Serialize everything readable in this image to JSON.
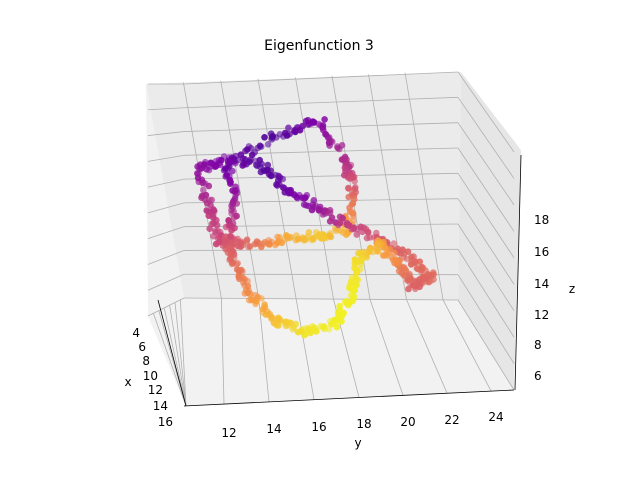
{
  "chart_data": {
    "type": "scatter",
    "projection": "3d",
    "title": "Eigenfunction 3",
    "xlabel": "x",
    "ylabel": "y",
    "zlabel": "z",
    "x_ticks": [
      4,
      6,
      8,
      10,
      12,
      14,
      16
    ],
    "y_ticks": [
      12,
      14,
      16,
      18,
      20,
      22,
      24
    ],
    "z_ticks": [
      6,
      8,
      12,
      14,
      16,
      18
    ],
    "xlim": [
      3,
      16
    ],
    "ylim": [
      11,
      25
    ],
    "zlim": [
      5,
      19
    ],
    "colormap": "plasma",
    "grid": true,
    "points_approx": [
      {
        "x": 8,
        "y": 12,
        "z": 16,
        "c": 0.35
      },
      {
        "x": 6,
        "y": 15,
        "z": 18,
        "c": 0.1
      },
      {
        "x": 8,
        "y": 19,
        "z": 18,
        "c": 0.3
      },
      {
        "x": 10,
        "y": 19,
        "z": 14,
        "c": 0.55
      },
      {
        "x": 10,
        "y": 24,
        "z": 12,
        "c": 0.75
      },
      {
        "x": 12,
        "y": 21,
        "z": 10,
        "c": 0.95
      },
      {
        "x": 14,
        "y": 16,
        "z": 8,
        "c": 0.85
      },
      {
        "x": 13,
        "y": 12,
        "z": 11,
        "c": 0.7
      },
      {
        "x": 9,
        "y": 13,
        "z": 14,
        "c": 0.5
      },
      {
        "x": 8,
        "y": 16,
        "z": 12,
        "c": 0.6
      },
      {
        "x": 7,
        "y": 20,
        "z": 13,
        "c": 0.85
      }
    ]
  }
}
